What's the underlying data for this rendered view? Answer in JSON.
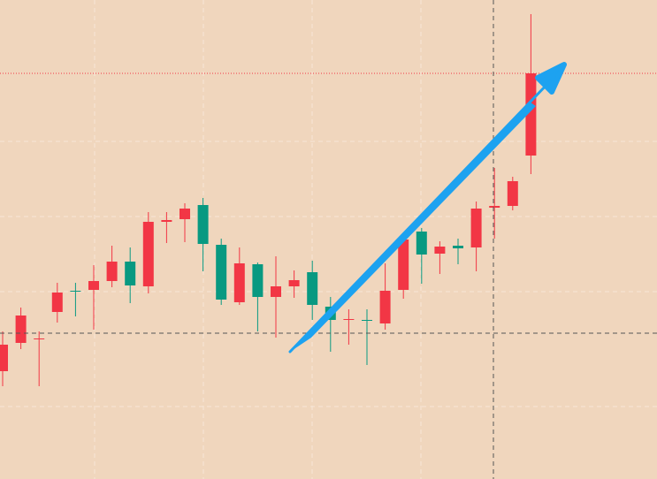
{
  "chart_data": {
    "type": "candlestick",
    "open": [
      122,
      154,
      158,
      189,
      213,
      214,
      224,
      246,
      218,
      291,
      294,
      310,
      265,
      200,
      243,
      206,
      218,
      234,
      195,
      180,
      180,
      176,
      214,
      280,
      255,
      264,
      262,
      307,
      309,
      366
    ],
    "high": [
      167,
      194,
      167,
      222,
      222,
      242,
      264,
      262,
      302,
      302,
      312,
      318,
      272,
      262,
      245,
      252,
      236,
      247,
      206,
      192,
      192,
      244,
      278,
      284,
      269,
      272,
      314,
      352,
      342,
      526
    ],
    "low": [
      105,
      147,
      105,
      177,
      184,
      169,
      217,
      199,
      210,
      267,
      268,
      235,
      197,
      197,
      167,
      160,
      205,
      180,
      144,
      152,
      129,
      169,
      204,
      221,
      232,
      243,
      235,
      272,
      304,
      345
    ],
    "close": [
      152,
      185,
      159,
      211,
      212,
      224,
      246,
      219,
      291,
      293,
      306,
      266,
      203,
      244,
      206,
      218,
      225,
      197,
      180,
      181,
      179,
      213,
      271,
      254,
      263,
      261,
      306,
      309,
      337,
      459
    ],
    "up_color": "#f23645",
    "down_color": "#089981",
    "last_price_line": 459,
    "ylim": [
      0,
      542
    ]
  }
}
